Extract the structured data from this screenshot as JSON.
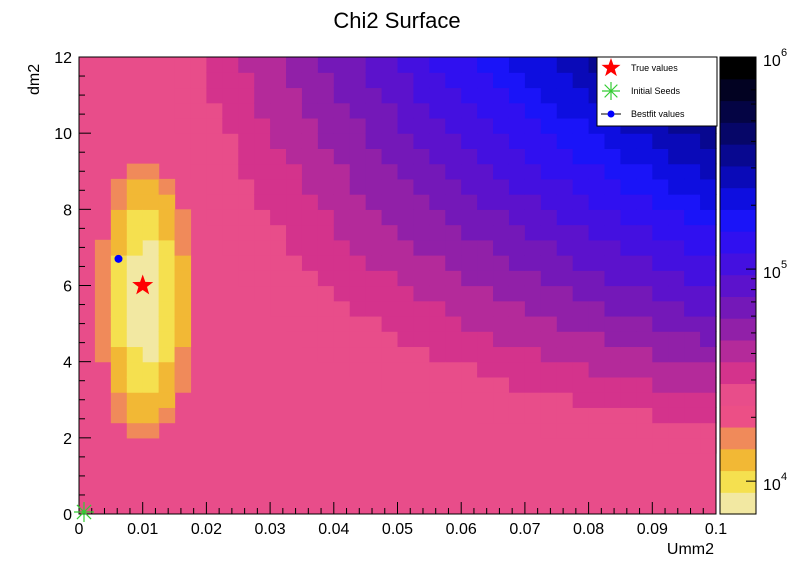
{
  "chart_data": {
    "type": "heatmap",
    "title": "Chi2 Surface",
    "xlabel": "Umm2",
    "ylabel": "dm2",
    "xlim": [
      0,
      0.1
    ],
    "ylim": [
      0,
      12
    ],
    "x_ticks": [
      "0",
      "0.01",
      "0.02",
      "0.03",
      "0.04",
      "0.05",
      "0.06",
      "0.07",
      "0.08",
      "0.09",
      "0.1"
    ],
    "y_ticks": [
      "0",
      "2",
      "4",
      "6",
      "8",
      "10",
      "12"
    ],
    "z_scale": "log",
    "z_range": [
      7000,
      1000000
    ],
    "colorbar_ticks": [
      {
        "base": "10",
        "exp": "4"
      },
      {
        "base": "10",
        "exp": "5"
      },
      {
        "base": "10",
        "exp": "6"
      }
    ],
    "legend_position": "top-right",
    "legend": [
      {
        "label": "True values",
        "marker": "star",
        "color": "#ff0000"
      },
      {
        "label": "Initial Seeds",
        "marker": "asterisk",
        "color": "#33cc33"
      },
      {
        "label": "Bestfit values",
        "marker": "circle",
        "color": "#0000ff"
      }
    ],
    "points": {
      "true_values": {
        "x": 0.01,
        "y": 6.0
      },
      "initial_seeds": {
        "x": 0.0,
        "y": 0.0
      },
      "bestfit_values": {
        "x": 0.0062,
        "y": 6.7
      }
    },
    "palette": [
      "#f2e8a2",
      "#f5e04f",
      "#f2b835",
      "#f08a5a",
      "#ec4f86",
      "#e84d8a",
      "#d4338c",
      "#b42a9a",
      "#9120a8",
      "#7418b8",
      "#5c12cc",
      "#4410e0",
      "#3010f0",
      "#1a14f8",
      "#0e0ee0",
      "#0a0ab8",
      "#080890",
      "#060668",
      "#040444",
      "#020222",
      "#000000"
    ]
  }
}
